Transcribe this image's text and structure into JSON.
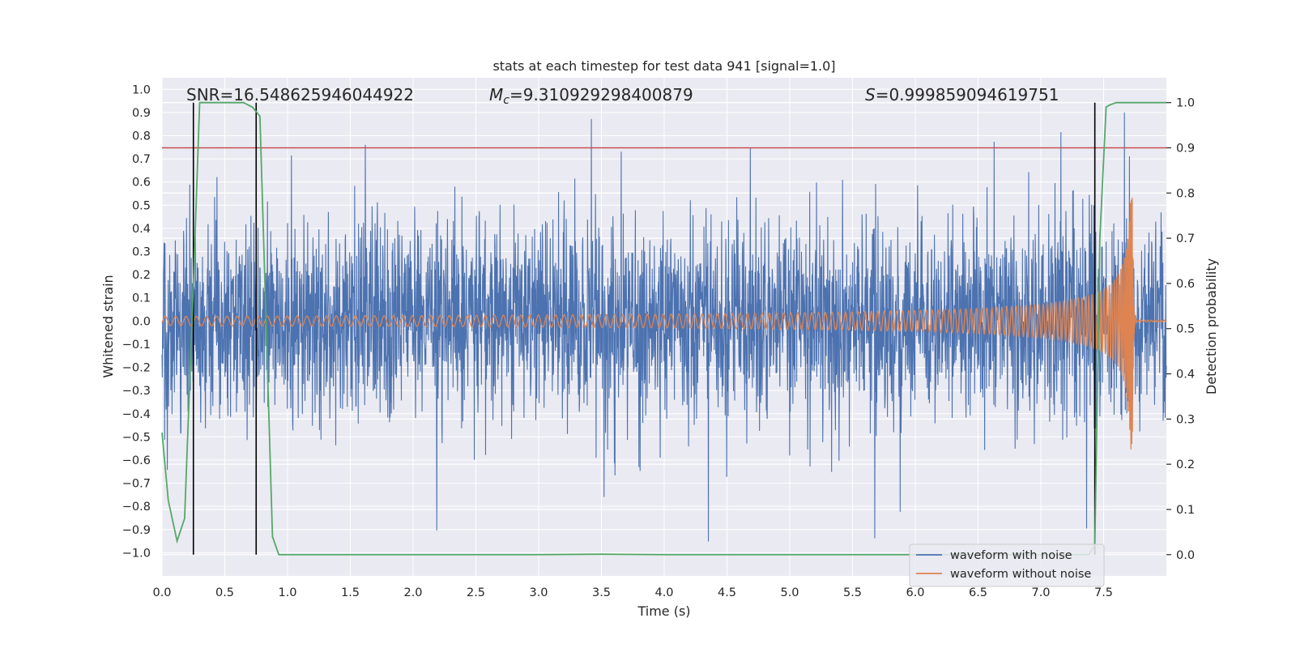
{
  "chart_data": {
    "type": "line",
    "title": "stats at each timestep for test data 941 [signal=1.0]",
    "xlabel": "Time (s)",
    "ylabel": "Whitened strain",
    "y2label": "Detection probability",
    "xlim": [
      0.0,
      8.0
    ],
    "ylim": [
      -1.1,
      1.05
    ],
    "y2lim": [
      -0.047,
      1.055
    ],
    "xticks": [
      0.0,
      0.5,
      1.0,
      1.5,
      2.0,
      2.5,
      3.0,
      3.5,
      4.0,
      4.5,
      5.0,
      5.5,
      6.0,
      6.5,
      7.0,
      7.5
    ],
    "xtick_labels": [
      "0.0",
      "0.5",
      "1.0",
      "1.5",
      "2.0",
      "2.5",
      "3.0",
      "3.5",
      "4.0",
      "4.5",
      "5.0",
      "5.5",
      "6.0",
      "6.5",
      "7.0",
      "7.5"
    ],
    "yticks": [
      1.0,
      0.9,
      0.8,
      0.7,
      0.6,
      0.5,
      0.4,
      0.3,
      0.2,
      0.1,
      0.0,
      -0.1,
      -0.2,
      -0.3,
      -0.4,
      -0.5,
      -0.6,
      -0.7,
      -0.8,
      -0.9,
      -1.0
    ],
    "ytick_labels": [
      "1.0",
      "0.9",
      "0.8",
      "0.7",
      "0.6",
      "0.5",
      "0.4",
      "0.3",
      "0.2",
      "0.1",
      "0.0",
      "−0.1",
      "−0.2",
      "−0.3",
      "−0.4",
      "−0.5",
      "−0.6",
      "−0.7",
      "−0.8",
      "−0.9",
      "−1.0"
    ],
    "y2ticks": [
      1.0,
      0.9,
      0.8,
      0.7,
      0.6,
      0.5,
      0.4,
      0.3,
      0.2,
      0.1,
      0.0
    ],
    "y2tick_labels": [
      "1.0",
      "0.9",
      "0.8",
      "0.7",
      "0.6",
      "0.5",
      "0.4",
      "0.3",
      "0.2",
      "0.1",
      "0.0"
    ],
    "grid": true,
    "legend_position": "bottom-right",
    "annotations": {
      "snr": "SNR=16.548625946044922",
      "mc_symbol": "M",
      "mc_sub": "c",
      "mc_value": "=9.310929298400879",
      "s_symbol": "S",
      "s_value": "=0.999859094619751"
    },
    "series": [
      {
        "name": "waveform with noise",
        "color": "#4c72b0",
        "axis": "left",
        "description": "noisy whitened strain, amplitude mostly within -0.6..0.6 with spikes to about ±0.9",
        "typical_envelope": 0.5,
        "peak_value": 0.9
      },
      {
        "name": "waveform without noise",
        "color": "#dd8452",
        "axis": "left",
        "description": "chirp signal; amplitude grows from about 0.02 to about 0.56 at merger near t=7.73 s, then ringdown",
        "initial_amplitude": 0.02,
        "merger_time": 7.73,
        "merger_amplitude": 0.56
      },
      {
        "name": "detection probability",
        "color": "#55a868",
        "axis": "right",
        "x": [
          0.0,
          0.05,
          0.12,
          0.18,
          0.25,
          0.3,
          0.5,
          0.65,
          0.72,
          0.78,
          0.88,
          0.93,
          1.2,
          2.0,
          3.0,
          3.5,
          4.0,
          5.0,
          6.0,
          6.5,
          7.0,
          7.3,
          7.38,
          7.43,
          7.47,
          7.52,
          7.55,
          7.6,
          7.7,
          8.0
        ],
        "values": [
          0.27,
          0.12,
          0.03,
          0.08,
          0.6,
          1.0,
          1.0,
          1.0,
          0.99,
          0.97,
          0.04,
          0.0,
          0.0,
          0.0,
          0.0,
          0.001,
          0.0,
          0.0,
          0.0,
          0.0,
          0.0,
          0.0,
          0.0,
          0.02,
          0.7,
          0.99,
          0.995,
          1.0,
          1.0,
          1.0
        ]
      }
    ],
    "threshold_line": {
      "color": "#c44e52",
      "value_right_axis": 0.9
    },
    "vertical_markers": [
      0.25,
      0.75,
      7.43
    ],
    "legend_entries": [
      "waveform with noise",
      "waveform without noise"
    ]
  }
}
